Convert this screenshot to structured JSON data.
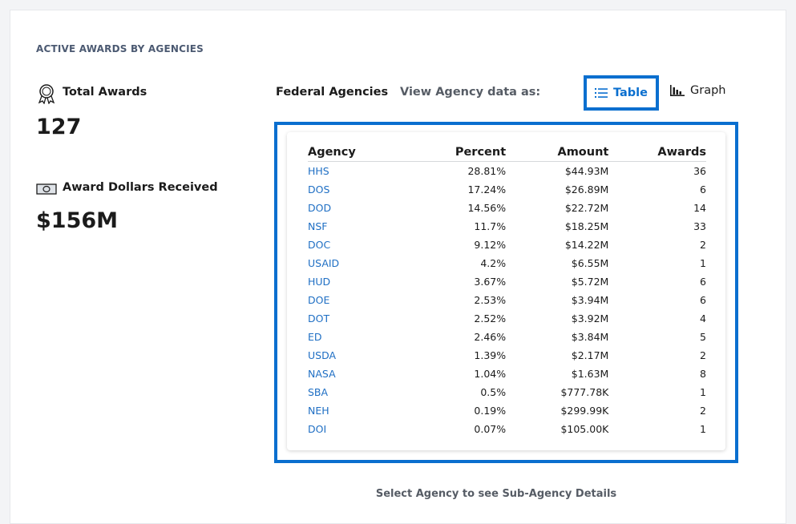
{
  "header": {
    "title": "ACTIVE AWARDS BY AGENCIES"
  },
  "stats": [
    {
      "label": "Total Awards",
      "value": "127"
    },
    {
      "label": "Award Dollars Received",
      "value": "$156M"
    }
  ],
  "controls": {
    "heading": "Federal Agencies",
    "view_label": "View Agency data as:",
    "options": [
      "Table",
      "Graph"
    ]
  },
  "table": {
    "columns": [
      "Agency",
      "Percent",
      "Amount",
      "Awards"
    ],
    "rows": [
      [
        "HHS",
        "28.81%",
        "$44.93M",
        "36"
      ],
      [
        "DOS",
        "17.24%",
        "$26.89M",
        "6"
      ],
      [
        "DOD",
        "14.56%",
        "$22.72M",
        "14"
      ],
      [
        "NSF",
        "11.7%",
        "$18.25M",
        "33"
      ],
      [
        "DOC",
        "9.12%",
        "$14.22M",
        "2"
      ],
      [
        "USAID",
        "4.2%",
        "$6.55M",
        "1"
      ],
      [
        "HUD",
        "3.67%",
        "$5.72M",
        "6"
      ],
      [
        "DOE",
        "2.53%",
        "$3.94M",
        "6"
      ],
      [
        "DOT",
        "2.52%",
        "$3.92M",
        "4"
      ],
      [
        "ED",
        "2.46%",
        "$3.84M",
        "5"
      ],
      [
        "USDA",
        "1.39%",
        "$2.17M",
        "2"
      ],
      [
        "NASA",
        "1.04%",
        "$1.63M",
        "8"
      ],
      [
        "SBA",
        "0.5%",
        "$777.78K",
        "1"
      ],
      [
        "NEH",
        "0.19%",
        "$299.99K",
        "2"
      ],
      [
        "DOI",
        "0.07%",
        "$105.00K",
        "1"
      ]
    ]
  },
  "footer": {
    "note": "Select Agency to see Sub-Agency Details"
  }
}
